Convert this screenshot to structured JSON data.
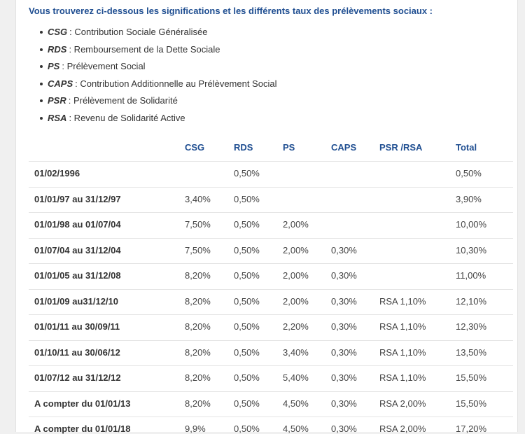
{
  "intro": "Vous trouverez ci-dessous les significations et les différents taux des prélèvements sociaux :",
  "items": [
    {
      "abbr": "CSG",
      "text": ": Contribution Sociale Généralisée"
    },
    {
      "abbr": "RDS",
      "text": ": Remboursement de la Dette Sociale"
    },
    {
      "abbr": "PS",
      "text": ": Prélèvement Social"
    },
    {
      "abbr": "CAPS",
      "text": ": Contribution Additionnelle au Prélèvement Social"
    },
    {
      "abbr": "PSR",
      "text": ": Prélèvement de Solidarité"
    },
    {
      "abbr": "RSA",
      "text": ": Revenu de Solidarité Active"
    }
  ],
  "table": {
    "header": [
      "CSG",
      "RDS",
      "PS",
      "CAPS",
      "PSR /RSA",
      "Total"
    ],
    "rows": [
      [
        "01/02/1996",
        null,
        "0,50%",
        null,
        null,
        null,
        "0,50%"
      ],
      [
        "01/01/97 au 31/12/97",
        "3,40%",
        "0,50%",
        null,
        null,
        null,
        "3,90%"
      ],
      [
        "01/01/98 au 01/07/04",
        "7,50%",
        "0,50%",
        "2,00%",
        null,
        null,
        "10,00%"
      ],
      [
        "01/07/04 au 31/12/04",
        "7,50%",
        "0,50%",
        "2,00%",
        "0,30%",
        null,
        "10,30%"
      ],
      [
        "01/01/05 au 31/12/08",
        "8,20%",
        "0,50%",
        "2,00%",
        "0,30%",
        null,
        "11,00%"
      ],
      [
        "01/01/09 au31/12/10",
        "8,20%",
        "0,50%",
        "2,00%",
        "0,30%",
        "RSA 1,10%",
        "12,10%"
      ],
      [
        "01/01/11 au 30/09/11",
        "8,20%",
        "0,50%",
        "2,20%",
        "0,30%",
        "RSA 1,10%",
        "12,30%"
      ],
      [
        "01/10/11 au 30/06/12",
        "8,20%",
        "0,50%",
        "3,40%",
        "0,30%",
        "RSA 1,10%",
        "13,50%"
      ],
      [
        "01/07/12 au 31/12/12",
        "8,20%",
        "0,50%",
        "5,40%",
        "0,30%",
        "RSA 1,10%",
        "15,50%"
      ],
      [
        "A compter du 01/01/13",
        "8,20%",
        "0,50%",
        "4,50%",
        "0,30%",
        "RSA 2,00%",
        "15,50%"
      ],
      [
        "A compter du 01/01/18",
        "9,9%",
        "0,50%",
        "4,50%",
        "0,30%",
        "RSA 2,00%",
        "17,20%"
      ]
    ]
  }
}
